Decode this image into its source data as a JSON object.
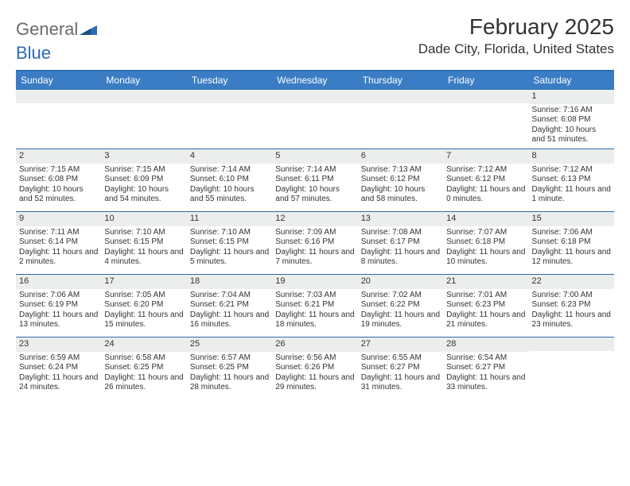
{
  "logo": {
    "word1": "General",
    "word2": "Blue"
  },
  "title": {
    "month": "February 2025",
    "location": "Dade City, Florida, United States"
  },
  "colors": {
    "header_bg": "#3b7dc4",
    "header_text": "#ffffff",
    "border": "#2b6cb0",
    "daynum_bg": "#eceded",
    "text": "#333333",
    "logo_gray": "#6b6b6b",
    "logo_blue": "#2b6cb0"
  },
  "weekdays": [
    "Sunday",
    "Monday",
    "Tuesday",
    "Wednesday",
    "Thursday",
    "Friday",
    "Saturday"
  ],
  "weeks": [
    [
      {
        "n": "",
        "lines": []
      },
      {
        "n": "",
        "lines": []
      },
      {
        "n": "",
        "lines": []
      },
      {
        "n": "",
        "lines": []
      },
      {
        "n": "",
        "lines": []
      },
      {
        "n": "",
        "lines": []
      },
      {
        "n": "1",
        "lines": [
          "Sunrise: 7:16 AM",
          "Sunset: 6:08 PM",
          "Daylight: 10 hours and 51 minutes."
        ]
      }
    ],
    [
      {
        "n": "2",
        "lines": [
          "Sunrise: 7:15 AM",
          "Sunset: 6:08 PM",
          "Daylight: 10 hours and 52 minutes."
        ]
      },
      {
        "n": "3",
        "lines": [
          "Sunrise: 7:15 AM",
          "Sunset: 6:09 PM",
          "Daylight: 10 hours and 54 minutes."
        ]
      },
      {
        "n": "4",
        "lines": [
          "Sunrise: 7:14 AM",
          "Sunset: 6:10 PM",
          "Daylight: 10 hours and 55 minutes."
        ]
      },
      {
        "n": "5",
        "lines": [
          "Sunrise: 7:14 AM",
          "Sunset: 6:11 PM",
          "Daylight: 10 hours and 57 minutes."
        ]
      },
      {
        "n": "6",
        "lines": [
          "Sunrise: 7:13 AM",
          "Sunset: 6:12 PM",
          "Daylight: 10 hours and 58 minutes."
        ]
      },
      {
        "n": "7",
        "lines": [
          "Sunrise: 7:12 AM",
          "Sunset: 6:12 PM",
          "Daylight: 11 hours and 0 minutes."
        ]
      },
      {
        "n": "8",
        "lines": [
          "Sunrise: 7:12 AM",
          "Sunset: 6:13 PM",
          "Daylight: 11 hours and 1 minute."
        ]
      }
    ],
    [
      {
        "n": "9",
        "lines": [
          "Sunrise: 7:11 AM",
          "Sunset: 6:14 PM",
          "Daylight: 11 hours and 2 minutes."
        ]
      },
      {
        "n": "10",
        "lines": [
          "Sunrise: 7:10 AM",
          "Sunset: 6:15 PM",
          "Daylight: 11 hours and 4 minutes."
        ]
      },
      {
        "n": "11",
        "lines": [
          "Sunrise: 7:10 AM",
          "Sunset: 6:15 PM",
          "Daylight: 11 hours and 5 minutes."
        ]
      },
      {
        "n": "12",
        "lines": [
          "Sunrise: 7:09 AM",
          "Sunset: 6:16 PM",
          "Daylight: 11 hours and 7 minutes."
        ]
      },
      {
        "n": "13",
        "lines": [
          "Sunrise: 7:08 AM",
          "Sunset: 6:17 PM",
          "Daylight: 11 hours and 8 minutes."
        ]
      },
      {
        "n": "14",
        "lines": [
          "Sunrise: 7:07 AM",
          "Sunset: 6:18 PM",
          "Daylight: 11 hours and 10 minutes."
        ]
      },
      {
        "n": "15",
        "lines": [
          "Sunrise: 7:06 AM",
          "Sunset: 6:18 PM",
          "Daylight: 11 hours and 12 minutes."
        ]
      }
    ],
    [
      {
        "n": "16",
        "lines": [
          "Sunrise: 7:06 AM",
          "Sunset: 6:19 PM",
          "Daylight: 11 hours and 13 minutes."
        ]
      },
      {
        "n": "17",
        "lines": [
          "Sunrise: 7:05 AM",
          "Sunset: 6:20 PM",
          "Daylight: 11 hours and 15 minutes."
        ]
      },
      {
        "n": "18",
        "lines": [
          "Sunrise: 7:04 AM",
          "Sunset: 6:21 PM",
          "Daylight: 11 hours and 16 minutes."
        ]
      },
      {
        "n": "19",
        "lines": [
          "Sunrise: 7:03 AM",
          "Sunset: 6:21 PM",
          "Daylight: 11 hours and 18 minutes."
        ]
      },
      {
        "n": "20",
        "lines": [
          "Sunrise: 7:02 AM",
          "Sunset: 6:22 PM",
          "Daylight: 11 hours and 19 minutes."
        ]
      },
      {
        "n": "21",
        "lines": [
          "Sunrise: 7:01 AM",
          "Sunset: 6:23 PM",
          "Daylight: 11 hours and 21 minutes."
        ]
      },
      {
        "n": "22",
        "lines": [
          "Sunrise: 7:00 AM",
          "Sunset: 6:23 PM",
          "Daylight: 11 hours and 23 minutes."
        ]
      }
    ],
    [
      {
        "n": "23",
        "lines": [
          "Sunrise: 6:59 AM",
          "Sunset: 6:24 PM",
          "Daylight: 11 hours and 24 minutes."
        ]
      },
      {
        "n": "24",
        "lines": [
          "Sunrise: 6:58 AM",
          "Sunset: 6:25 PM",
          "Daylight: 11 hours and 26 minutes."
        ]
      },
      {
        "n": "25",
        "lines": [
          "Sunrise: 6:57 AM",
          "Sunset: 6:25 PM",
          "Daylight: 11 hours and 28 minutes."
        ]
      },
      {
        "n": "26",
        "lines": [
          "Sunrise: 6:56 AM",
          "Sunset: 6:26 PM",
          "Daylight: 11 hours and 29 minutes."
        ]
      },
      {
        "n": "27",
        "lines": [
          "Sunrise: 6:55 AM",
          "Sunset: 6:27 PM",
          "Daylight: 11 hours and 31 minutes."
        ]
      },
      {
        "n": "28",
        "lines": [
          "Sunrise: 6:54 AM",
          "Sunset: 6:27 PM",
          "Daylight: 11 hours and 33 minutes."
        ]
      },
      {
        "n": "",
        "lines": []
      }
    ]
  ]
}
